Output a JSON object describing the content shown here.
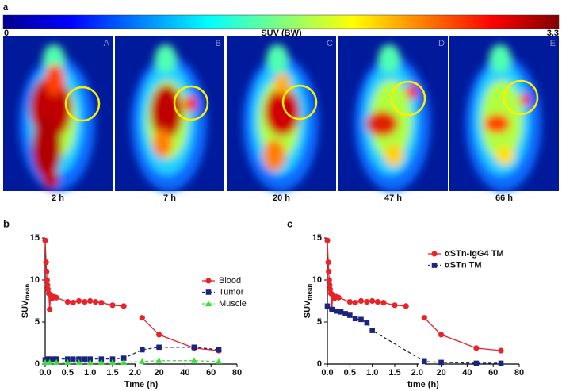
{
  "panel_labels": [
    "a",
    "b",
    "c"
  ],
  "colorbar": {
    "title": "SUV (BW)",
    "range": [
      0,
      3.3
    ]
  },
  "images": [
    {
      "letter": "A",
      "time": "2 h"
    },
    {
      "letter": "B",
      "time": "7 h"
    },
    {
      "letter": "C",
      "time": "20 h"
    },
    {
      "letter": "D",
      "time": "47 h"
    },
    {
      "letter": "E",
      "time": "66 h"
    }
  ],
  "chart_data": [
    {
      "type": "line",
      "ylabel": "SUV",
      "ylabel_sub": "mean",
      "xlabel": "Time (h)",
      "ylim": [
        0,
        15
      ],
      "yticks": [
        0,
        5,
        10,
        15
      ],
      "x_segments": [
        {
          "xlim": [
            0,
            2.1
          ],
          "xticks": [
            {
              "value": 0,
              "label": "0.0"
            },
            0.5,
            {
              "value": 1,
              "label": "1.0"
            },
            1.5,
            {
              "value": 2,
              "label": "2.0"
            }
          ]
        },
        {
          "xlim": [
            5,
            80
          ],
          "xticks": [
            20,
            40,
            60,
            80
          ]
        }
      ],
      "legend": "right",
      "series": [
        {
          "name": "Blood",
          "color": "#e8232a",
          "marker": "circle",
          "dashed": false,
          "connect_break": false,
          "x": [
            0,
            0.02,
            0.03,
            0.04,
            0.05,
            0.06,
            0.08,
            0.1,
            0.12,
            0.15,
            0.2,
            0.25,
            0.5,
            0.62,
            0.75,
            0.88,
            1.0,
            1.12,
            1.25,
            1.5,
            1.75,
            7,
            20,
            47,
            66
          ],
          "values": [
            14.7,
            12.1,
            11,
            10,
            9.4,
            8.9,
            8.4,
            6.5,
            8.2,
            7.8,
            8.0,
            7.9,
            7.4,
            7.3,
            7.5,
            7.4,
            7.5,
            7.4,
            7.3,
            7.0,
            6.9,
            5.5,
            3.5,
            1.9,
            1.6
          ]
        },
        {
          "name": "Tumor",
          "color": "#1a237e",
          "marker": "square",
          "dashed": true,
          "connect_break": true,
          "x": [
            0,
            0.05,
            0.1,
            0.2,
            0.25,
            0.5,
            0.62,
            0.75,
            0.88,
            1.0,
            1.25,
            1.5,
            1.75,
            7,
            20,
            47,
            66
          ],
          "values": [
            0.5,
            0.6,
            0.6,
            0.6,
            0.6,
            0.6,
            0.6,
            0.6,
            0.6,
            0.6,
            0.6,
            0.6,
            0.7,
            1.7,
            2.0,
            2.0,
            1.7
          ]
        },
        {
          "name": "Muscle",
          "color": "#3adf3a",
          "marker": "triangle",
          "dashed": true,
          "connect_break": true,
          "x": [
            0,
            0.1,
            0.25,
            0.5,
            0.75,
            1.0,
            1.25,
            1.5,
            1.75,
            7,
            20,
            47,
            66
          ],
          "values": [
            0.2,
            0.2,
            0.2,
            0.2,
            0.2,
            0.2,
            0.2,
            0.2,
            0.2,
            0.3,
            0.4,
            0.4,
            0.3
          ]
        }
      ]
    },
    {
      "type": "line",
      "ylabel": "SUV",
      "ylabel_sub": "mean",
      "xlabel": "time (h)",
      "ylim": [
        0,
        15
      ],
      "yticks": [
        0,
        5,
        10,
        15
      ],
      "x_segments": [
        {
          "xlim": [
            0,
            2.1
          ],
          "xticks": [
            {
              "value": 0,
              "label": "0.0"
            },
            0.5,
            {
              "value": 1,
              "label": "1.0"
            },
            1.5,
            {
              "value": 2,
              "label": "2.0"
            }
          ]
        },
        {
          "xlim": [
            5,
            80
          ],
          "xticks": [
            20,
            40,
            60,
            80
          ]
        }
      ],
      "legend": "top-right",
      "series": [
        {
          "name": "αSTn-IgG4 TM",
          "color": "#e8232a",
          "marker": "circle",
          "dashed": false,
          "connect_break": false,
          "x": [
            0,
            0.02,
            0.03,
            0.04,
            0.05,
            0.06,
            0.08,
            0.1,
            0.12,
            0.15,
            0.2,
            0.25,
            0.5,
            0.62,
            0.75,
            0.88,
            1.0,
            1.12,
            1.25,
            1.5,
            1.75,
            7,
            20,
            47,
            66
          ],
          "values": [
            14.7,
            12.1,
            11,
            10,
            9.4,
            8.9,
            8.4,
            6.5,
            8.2,
            7.8,
            8.0,
            7.9,
            7.4,
            7.3,
            7.5,
            7.4,
            7.5,
            7.4,
            7.3,
            7.0,
            6.9,
            5.5,
            3.5,
            1.9,
            1.6
          ]
        },
        {
          "name": "αSTn TM",
          "color": "#1a237e",
          "marker": "square",
          "dashed": true,
          "connect_break": true,
          "x": [
            0,
            0.1,
            0.2,
            0.3,
            0.4,
            0.5,
            0.62,
            0.75,
            0.88,
            1.0,
            7,
            20,
            47,
            66
          ],
          "values": [
            6.9,
            6.5,
            6.3,
            6.2,
            6.0,
            5.8,
            5.4,
            5.3,
            4.9,
            4.0,
            0.3,
            0.2,
            0.1,
            0.1
          ]
        }
      ]
    }
  ]
}
